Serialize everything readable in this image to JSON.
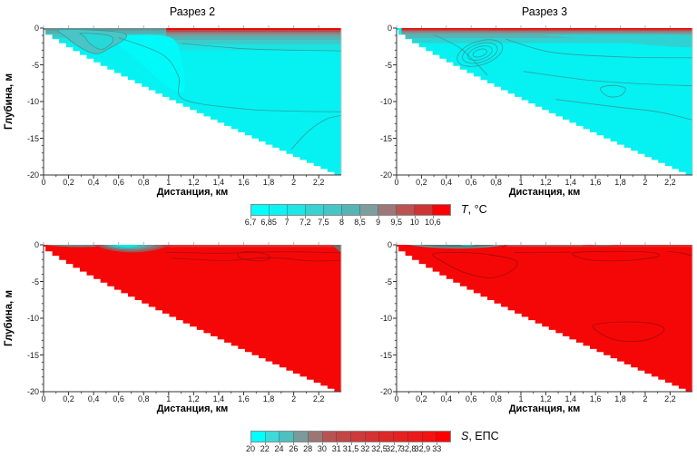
{
  "figure": {
    "background": "#ffffff"
  },
  "panels": [
    {
      "title": "Разрез 2",
      "xlabel": "Дистанция, км",
      "ylabel": "Глубина, м",
      "xticks": [
        "0",
        "0,2",
        "0,4",
        "0,6",
        "0,8",
        "1",
        "1,2",
        "1,4",
        "1,6",
        "1,8",
        "2",
        "2,2"
      ],
      "yticks": [
        "0",
        "-5",
        "-10",
        "-15",
        "-20"
      ]
    },
    {
      "title": "Разрез 3",
      "xlabel": "Дистанция, км",
      "ylabel": "",
      "xticks": [
        "0",
        "0,2",
        "0,4",
        "0,6",
        "0,8",
        "1",
        "1,2",
        "1,4",
        "1,6",
        "1,8",
        "2",
        "2,2"
      ],
      "yticks": [
        "0",
        "-5",
        "-10",
        "-15",
        "-20"
      ]
    },
    {
      "title": "",
      "xlabel": "Дистанция, км",
      "ylabel": "Глубина, м",
      "xticks": [
        "0",
        "0,2",
        "0,4",
        "0,6",
        "0,8",
        "1",
        "1,2",
        "1,4",
        "1,6",
        "1,8",
        "2",
        "2,2"
      ],
      "yticks": [
        "0",
        "-5",
        "-10",
        "-15",
        "-20"
      ]
    },
    {
      "title": "",
      "xlabel": "Дистанция, км",
      "ylabel": "",
      "xticks": [
        "0",
        "0,2",
        "0,4",
        "0,6",
        "0,8",
        "1",
        "1,2",
        "1,4",
        "1,6",
        "1,8",
        "2",
        "2,2"
      ],
      "yticks": [
        "0",
        "-5",
        "-10",
        "-15",
        "-20"
      ]
    }
  ],
  "colorbars": [
    {
      "var": "T",
      "unit": ", °C",
      "labels": [
        "6,7",
        "6,85",
        "7",
        "7,2",
        "7,5",
        "8",
        "8,5",
        "9",
        "9,5",
        "10",
        "10,6"
      ],
      "colors": [
        "#00FFFF",
        "#0CF3F3",
        "#1DE6E6",
        "#36D3D3",
        "#45C5C5",
        "#55B5B5",
        "#7F9D9D",
        "#9E7878",
        "#BD5252",
        "#CF3434",
        "#FF0000"
      ]
    },
    {
      "var": "S",
      "unit": ", ЕПС",
      "labels": [
        "20",
        "22",
        "24",
        "26",
        "28",
        "30",
        "31",
        "31,5",
        "32",
        "32,5",
        "32,7",
        "32,8",
        "32,9",
        "33"
      ],
      "colors": [
        "#00FFFF",
        "#3FD9D9",
        "#4FBFBF",
        "#7A9A9A",
        "#9C7575",
        "#B85353",
        "#C24646",
        "#CC3B3B",
        "#D53131",
        "#DD2828",
        "#E42121",
        "#EB1A1A",
        "#F31111",
        "#FF0000"
      ]
    }
  ],
  "chart_data": [
    {
      "type": "heatmap",
      "subtype": "filled_contour_section",
      "panel": "top-left",
      "title": "Разрез 2",
      "variable": "T",
      "units": "°C",
      "xlabel": "Дистанция, км",
      "ylabel": "Глубина, м",
      "xlim": [
        0,
        2.38
      ],
      "ylim": [
        -20,
        0
      ],
      "xticks": [
        0,
        0.2,
        0.4,
        0.6,
        0.8,
        1,
        1.2,
        1.4,
        1.6,
        1.8,
        2,
        2.2
      ],
      "yticks": [
        0,
        -5,
        -10,
        -15,
        -20
      ],
      "levels": [
        6.7,
        6.85,
        7,
        7.2,
        7.5,
        8,
        8.5,
        9,
        9.5,
        10,
        10.6
      ],
      "bathymetry_km_m": [
        [
          0,
          0
        ],
        [
          0.25,
          -2.4
        ],
        [
          0.5,
          -5.1
        ],
        [
          0.75,
          -7.3
        ],
        [
          1,
          -9.6
        ],
        [
          1.25,
          -11.8
        ],
        [
          1.5,
          -13.9
        ],
        [
          1.75,
          -15.7
        ],
        [
          2,
          -17.3
        ],
        [
          2.2,
          -18.9
        ],
        [
          2.38,
          -20
        ]
      ],
      "features": [
        "bulk water 6.7-7.2 C (cyan)",
        "warm surface strip T>10 C at x>0.95 km, depth<0.3 m",
        "stratified 7.5-9.5 C layers in upper 1.5 m",
        "nested 7.2-7.5 C contours on slope at x=0.15-0.65 km, 0-3.5 m",
        "7 C contour descending from (0.6,-1) to (1.1,-10) then level to right edge"
      ]
    },
    {
      "type": "heatmap",
      "subtype": "filled_contour_section",
      "panel": "top-right",
      "title": "Разрез 3",
      "variable": "T",
      "units": "°C",
      "xlabel": "Дистанция, км",
      "ylabel": "Глубина, м",
      "xlim": [
        0,
        2.38
      ],
      "ylim": [
        -20,
        0
      ],
      "levels": [
        6.7,
        6.85,
        7,
        7.2,
        7.5,
        8,
        8.5,
        9,
        9.5,
        10,
        10.6
      ],
      "bathymetry_km_m": [
        [
          0,
          0
        ],
        [
          0.5,
          -5.1
        ],
        [
          1,
          -10.2
        ],
        [
          1.5,
          -14
        ],
        [
          2,
          -17.4
        ],
        [
          2.38,
          -20
        ]
      ],
      "features": [
        "thin warm film T>10 C along entire surface, depth<0.2 m",
        "bulk 6.7-7.2 C",
        "nested contour loops at x=0.55-0.8 km, 1.5-6.5 m depth",
        "7 C contour with mushroom-shaped bump at x~1.7 km, 8-9.5 m"
      ]
    },
    {
      "type": "heatmap",
      "subtype": "filled_contour_section",
      "panel": "bottom-left",
      "title": "Разрез 2",
      "variable": "S",
      "units": "ЕПС",
      "xlabel": "Дистанция, км",
      "ylabel": "Глубина, м",
      "xlim": [
        0,
        2.38
      ],
      "ylim": [
        -20,
        0
      ],
      "levels": [
        20,
        22,
        24,
        26,
        28,
        30,
        31,
        31.5,
        32,
        32.5,
        32.7,
        32.8,
        32.9,
        33
      ],
      "bathymetry_km_m": [
        [
          0,
          0
        ],
        [
          0.5,
          -5.1
        ],
        [
          1,
          -9.6
        ],
        [
          1.5,
          -13.9
        ],
        [
          2,
          -17.3
        ],
        [
          2.38,
          -20
        ]
      ],
      "features": [
        "fresh surface lens 20-30 EPS at x=0.42-1.0 km, depth<1 m with 20-22 EPS core",
        "bulk salinity >33 EPS (red)",
        "31-32 EPS film along surface left of lens",
        "weak 33 EPS contours at 1-2 m depth right of the lens"
      ]
    },
    {
      "type": "heatmap",
      "subtype": "filled_contour_section",
      "panel": "bottom-right",
      "title": "Разрез 3",
      "variable": "S",
      "units": "ЕПС",
      "xlabel": "Дистанция, км",
      "ylabel": "Глубина, м",
      "xlim": [
        0,
        2.38
      ],
      "ylim": [
        -20,
        0
      ],
      "levels": [
        20,
        22,
        24,
        26,
        28,
        30,
        31,
        31.5,
        32,
        32.5,
        32.7,
        32.8,
        32.9,
        33
      ],
      "bathymetry_km_m": [
        [
          0,
          0
        ],
        [
          0.5,
          -5.1
        ],
        [
          1,
          -10.2
        ],
        [
          1.5,
          -14
        ],
        [
          2,
          -17.4
        ],
        [
          2.38,
          -20
        ]
      ],
      "features": [
        "brackish 26-30 EPS surface film at x=0.1-0.9 km, depth<0.5 m",
        "bulk salinity >33 EPS",
        "closed 33 EPS contour loops near (0.3-0.95 km, 1-4.5 m), (1.4-2.1 km, 1-2 m), (1.55-2.15 km, 10.5-13 m)"
      ]
    }
  ]
}
